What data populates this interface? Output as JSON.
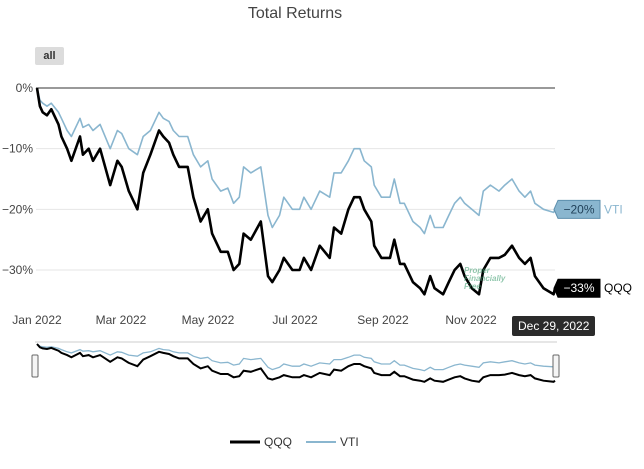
{
  "range_selector": {
    "all_label": "all"
  },
  "watermark": {
    "line1": "Proper",
    "line2": "Financially",
    "line3": "Free"
  },
  "chart_data": {
    "type": "line",
    "title": "Total Returns",
    "x_ticks": [
      "Jan 2022",
      "Mar 2022",
      "May 2022",
      "Jul 2022",
      "Sep 2022",
      "Nov 2022"
    ],
    "y_ticks": [
      "0%",
      "−10%",
      "−20%",
      "−30%"
    ],
    "y_tick_values": [
      0,
      -10,
      -20,
      -30
    ],
    "ylim": [
      -36,
      2
    ],
    "x_start": "2022-01-03",
    "x_end": "2022-12-30",
    "legend_position": "bottom-center",
    "grid": true,
    "navigator": true,
    "series": [
      {
        "name": "QQQ",
        "color": "#000000",
        "end_label": "−33%",
        "values": [
          [
            "2022-01-03",
            0
          ],
          [
            "2022-01-05",
            -3
          ],
          [
            "2022-01-07",
            -4
          ],
          [
            "2022-01-10",
            -4.5
          ],
          [
            "2022-01-13",
            -3.5
          ],
          [
            "2022-01-18",
            -6
          ],
          [
            "2022-01-20",
            -8
          ],
          [
            "2022-01-24",
            -10
          ],
          [
            "2022-01-27",
            -12
          ],
          [
            "2022-02-02",
            -8
          ],
          [
            "2022-02-04",
            -11
          ],
          [
            "2022-02-08",
            -10
          ],
          [
            "2022-02-11",
            -12
          ],
          [
            "2022-02-16",
            -10
          ],
          [
            "2022-02-23",
            -16
          ],
          [
            "2022-02-28",
            -12
          ],
          [
            "2022-03-03",
            -13
          ],
          [
            "2022-03-08",
            -17
          ],
          [
            "2022-03-14",
            -20
          ],
          [
            "2022-03-18",
            -14
          ],
          [
            "2022-03-23",
            -11
          ],
          [
            "2022-03-29",
            -7
          ],
          [
            "2022-04-01",
            -8
          ],
          [
            "2022-04-05",
            -9
          ],
          [
            "2022-04-08",
            -11
          ],
          [
            "2022-04-12",
            -13
          ],
          [
            "2022-04-18",
            -13
          ],
          [
            "2022-04-22",
            -18
          ],
          [
            "2022-04-27",
            -22
          ],
          [
            "2022-05-02",
            -20
          ],
          [
            "2022-05-05",
            -24
          ],
          [
            "2022-05-11",
            -27
          ],
          [
            "2022-05-16",
            -27
          ],
          [
            "2022-05-20",
            -30
          ],
          [
            "2022-05-24",
            -29
          ],
          [
            "2022-05-27",
            -24
          ],
          [
            "2022-06-01",
            -25
          ],
          [
            "2022-06-08",
            -22
          ],
          [
            "2022-06-13",
            -31
          ],
          [
            "2022-06-16",
            -32
          ],
          [
            "2022-06-21",
            -30
          ],
          [
            "2022-06-24",
            -28
          ],
          [
            "2022-06-30",
            -30
          ],
          [
            "2022-07-05",
            -30
          ],
          [
            "2022-07-08",
            -28
          ],
          [
            "2022-07-13",
            -30
          ],
          [
            "2022-07-19",
            -26
          ],
          [
            "2022-07-26",
            -28
          ],
          [
            "2022-07-29",
            -23
          ],
          [
            "2022-08-03",
            -24
          ],
          [
            "2022-08-08",
            -20
          ],
          [
            "2022-08-12",
            -18
          ],
          [
            "2022-08-16",
            -18
          ],
          [
            "2022-08-19",
            -20
          ],
          [
            "2022-08-24",
            -22
          ],
          [
            "2022-08-26",
            -26
          ],
          [
            "2022-08-31",
            -28
          ],
          [
            "2022-09-06",
            -28
          ],
          [
            "2022-09-09",
            -25
          ],
          [
            "2022-09-13",
            -29
          ],
          [
            "2022-09-16",
            -29
          ],
          [
            "2022-09-22",
            -32
          ],
          [
            "2022-09-27",
            -33
          ],
          [
            "2022-09-30",
            -34
          ],
          [
            "2022-10-04",
            -31
          ],
          [
            "2022-10-07",
            -33
          ],
          [
            "2022-10-13",
            -34
          ],
          [
            "2022-10-17",
            -32
          ],
          [
            "2022-10-21",
            -30
          ],
          [
            "2022-10-25",
            -29
          ],
          [
            "2022-10-28",
            -31
          ],
          [
            "2022-11-02",
            -33
          ],
          [
            "2022-11-07",
            -34
          ],
          [
            "2022-11-10",
            -30
          ],
          [
            "2022-11-15",
            -28
          ],
          [
            "2022-11-21",
            -28
          ],
          [
            "2022-11-25",
            -27.5
          ],
          [
            "2022-11-30",
            -26
          ],
          [
            "2022-12-05",
            -28
          ],
          [
            "2022-12-09",
            -29
          ],
          [
            "2022-12-13",
            -28
          ],
          [
            "2022-12-16",
            -31
          ],
          [
            "2022-12-22",
            -33
          ],
          [
            "2022-12-29",
            -34
          ],
          [
            "2022-12-30",
            -33
          ]
        ]
      },
      {
        "name": "VTI",
        "color": "#8ab6cf",
        "end_label": "−20%",
        "values": [
          [
            "2022-01-03",
            0
          ],
          [
            "2022-01-05",
            -2
          ],
          [
            "2022-01-07",
            -2.5
          ],
          [
            "2022-01-10",
            -3
          ],
          [
            "2022-01-13",
            -2.5
          ],
          [
            "2022-01-18",
            -4
          ],
          [
            "2022-01-20",
            -5
          ],
          [
            "2022-01-24",
            -7
          ],
          [
            "2022-01-27",
            -8
          ],
          [
            "2022-02-02",
            -5
          ],
          [
            "2022-02-04",
            -6.5
          ],
          [
            "2022-02-08",
            -6
          ],
          [
            "2022-02-11",
            -7
          ],
          [
            "2022-02-16",
            -6
          ],
          [
            "2022-02-23",
            -10
          ],
          [
            "2022-02-28",
            -7
          ],
          [
            "2022-03-03",
            -7.5
          ],
          [
            "2022-03-08",
            -10
          ],
          [
            "2022-03-14",
            -11
          ],
          [
            "2022-03-18",
            -8
          ],
          [
            "2022-03-23",
            -7
          ],
          [
            "2022-03-29",
            -4
          ],
          [
            "2022-04-01",
            -5
          ],
          [
            "2022-04-05",
            -5.5
          ],
          [
            "2022-04-08",
            -7
          ],
          [
            "2022-04-12",
            -8
          ],
          [
            "2022-04-18",
            -8
          ],
          [
            "2022-04-22",
            -11
          ],
          [
            "2022-04-27",
            -13
          ],
          [
            "2022-05-02",
            -12
          ],
          [
            "2022-05-05",
            -15
          ],
          [
            "2022-05-11",
            -17
          ],
          [
            "2022-05-16",
            -16.5
          ],
          [
            "2022-05-20",
            -19
          ],
          [
            "2022-05-24",
            -18
          ],
          [
            "2022-05-27",
            -13
          ],
          [
            "2022-06-01",
            -14
          ],
          [
            "2022-06-08",
            -13
          ],
          [
            "2022-06-13",
            -21
          ],
          [
            "2022-06-16",
            -23
          ],
          [
            "2022-06-21",
            -21
          ],
          [
            "2022-06-24",
            -18
          ],
          [
            "2022-06-30",
            -20
          ],
          [
            "2022-07-05",
            -20
          ],
          [
            "2022-07-08",
            -18
          ],
          [
            "2022-07-13",
            -20
          ],
          [
            "2022-07-19",
            -17
          ],
          [
            "2022-07-26",
            -18
          ],
          [
            "2022-07-29",
            -14
          ],
          [
            "2022-08-03",
            -14
          ],
          [
            "2022-08-08",
            -12
          ],
          [
            "2022-08-12",
            -10
          ],
          [
            "2022-08-16",
            -10
          ],
          [
            "2022-08-19",
            -12
          ],
          [
            "2022-08-24",
            -13
          ],
          [
            "2022-08-26",
            -16
          ],
          [
            "2022-08-31",
            -18
          ],
          [
            "2022-09-06",
            -18
          ],
          [
            "2022-09-09",
            -15
          ],
          [
            "2022-09-13",
            -19
          ],
          [
            "2022-09-16",
            -19
          ],
          [
            "2022-09-22",
            -22
          ],
          [
            "2022-09-27",
            -23
          ],
          [
            "2022-09-30",
            -24
          ],
          [
            "2022-10-04",
            -21
          ],
          [
            "2022-10-07",
            -23
          ],
          [
            "2022-10-13",
            -23
          ],
          [
            "2022-10-17",
            -21
          ],
          [
            "2022-10-21",
            -19
          ],
          [
            "2022-10-25",
            -18
          ],
          [
            "2022-10-28",
            -19
          ],
          [
            "2022-11-02",
            -20
          ],
          [
            "2022-11-07",
            -21
          ],
          [
            "2022-11-10",
            -17
          ],
          [
            "2022-11-15",
            -16
          ],
          [
            "2022-11-21",
            -17
          ],
          [
            "2022-11-25",
            -16
          ],
          [
            "2022-11-30",
            -15
          ],
          [
            "2022-12-05",
            -17
          ],
          [
            "2022-12-09",
            -18
          ],
          [
            "2022-12-13",
            -17
          ],
          [
            "2022-12-16",
            -19
          ],
          [
            "2022-12-22",
            -20
          ],
          [
            "2022-12-29",
            -20.5
          ],
          [
            "2022-12-30",
            -20
          ]
        ]
      }
    ],
    "annotation": {
      "date_label": "Dec 29, 2022"
    }
  }
}
